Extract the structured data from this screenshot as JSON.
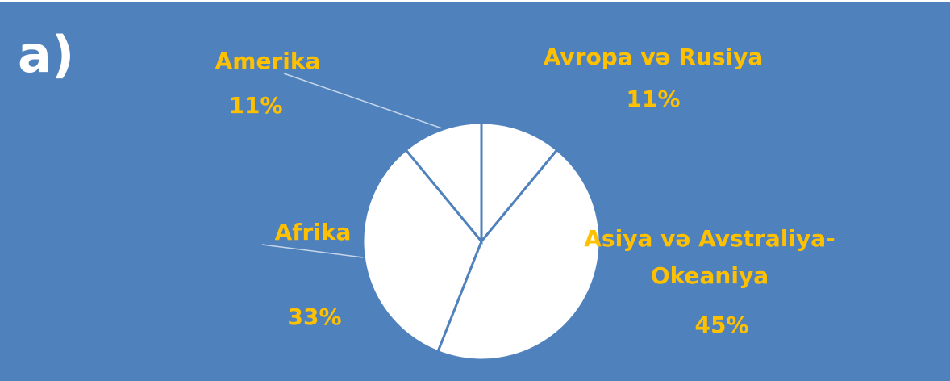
{
  "chart_data": {
    "type": "pie",
    "title": "a)",
    "categories": [
      "Avropa və Rusiya",
      "Asiya və Avstraliya-Okeaniya",
      "Afrika",
      "Amerika"
    ],
    "values": [
      11,
      45,
      33,
      11
    ],
    "value_labels": [
      "11%",
      "45%",
      "33%",
      "11%"
    ],
    "color": "#ffffff"
  }
}
